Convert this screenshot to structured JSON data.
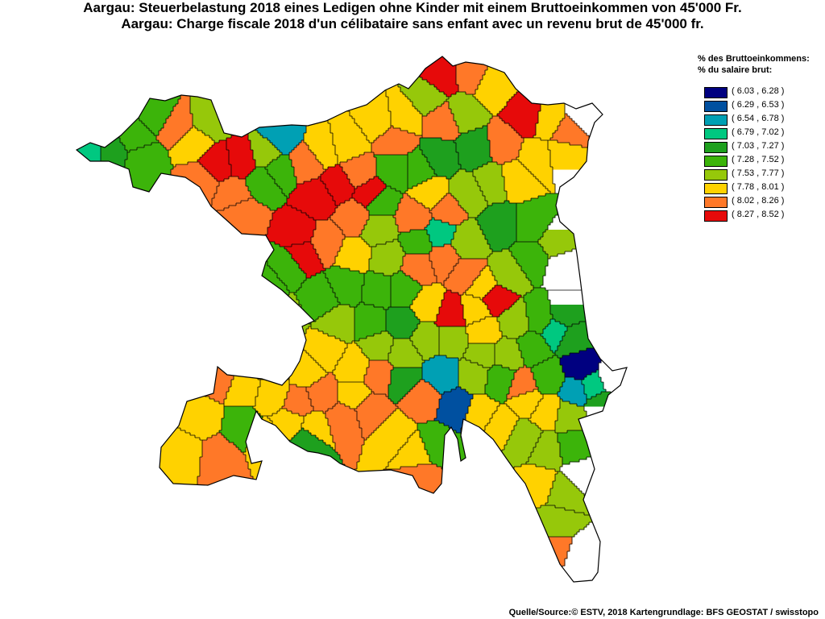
{
  "title": {
    "line1": "Aargau: Steuerbelastung 2018 eines Ledigen ohne Kinder mit einem Bruttoeinkommen von 45'000 Fr.",
    "line2": "Aargau: Charge fiscale 2018 d'un célibataire sans enfant avec un revenu brut de 45'000 fr."
  },
  "legend": {
    "heading_de": "% des Bruttoeinkommens:",
    "heading_fr": "% du salaire brut:",
    "classes": [
      {
        "label": "( 6.03 , 6.28 )",
        "color": "#000080"
      },
      {
        "label": "( 6.29 , 6.53 )",
        "color": "#0050A0"
      },
      {
        "label": "( 6.54 , 6.78 )",
        "color": "#00A0B4"
      },
      {
        "label": "( 6.79 , 7.02 )",
        "color": "#00C880"
      },
      {
        "label": "( 7.03 , 7.27 )",
        "color": "#1EA01E"
      },
      {
        "label": "( 7.28 , 7.52 )",
        "color": "#3CB40A"
      },
      {
        "label": "( 7.53 , 7.77 )",
        "color": "#96C80A"
      },
      {
        "label": "( 7.78 , 8.01 )",
        "color": "#FFD200"
      },
      {
        "label": "( 8.02 , 8.26 )",
        "color": "#FF7828"
      },
      {
        "label": "( 8.27 , 8.52 )",
        "color": "#E60A0A"
      }
    ]
  },
  "source": "Quelle/Source:© ESTV, 2018 Kartengrundlage: BFS GEOSTAT / swisstopo"
}
